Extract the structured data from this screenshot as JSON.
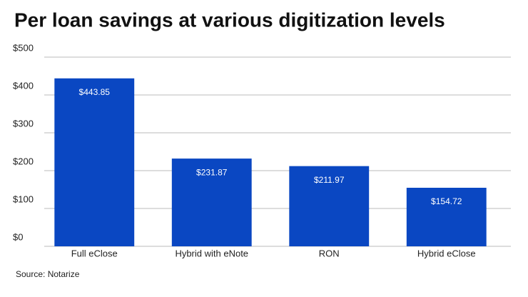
{
  "chart_data": {
    "type": "bar",
    "title": "Per loan savings at various digitization levels",
    "categories": [
      "Full eClose",
      "Hybrid with eNote",
      "RON",
      "Hybrid eClose"
    ],
    "values": [
      443.85,
      231.87,
      211.97,
      154.72
    ],
    "value_labels": [
      "$443.85",
      "$231.87",
      "$211.97",
      "$154.72"
    ],
    "color": "#0a47c2",
    "ylim": [
      0,
      500
    ],
    "yticks": [
      {
        "value": 0,
        "label": "$0"
      },
      {
        "value": 100,
        "label": "$100"
      },
      {
        "value": 200,
        "label": "$200"
      },
      {
        "value": 300,
        "label": "$300"
      },
      {
        "value": 400,
        "label": "$400"
      },
      {
        "value": 500,
        "label": "$500"
      }
    ],
    "grid": true,
    "source": "Source: Notarize"
  }
}
